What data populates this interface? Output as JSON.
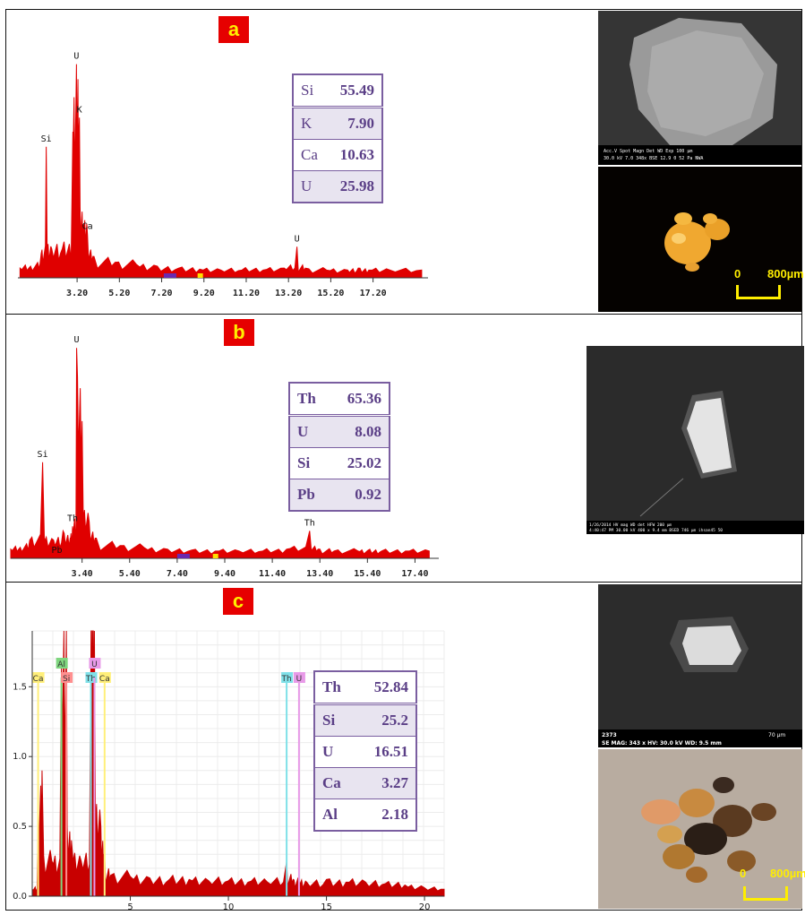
{
  "panels": [
    {
      "label": "a",
      "composition": [
        {
          "el": "Si",
          "val": "55.49"
        },
        {
          "el": "K",
          "val": "7.90"
        },
        {
          "el": "Ca",
          "val": "10.63"
        },
        {
          "el": "U",
          "val": "25.98"
        }
      ],
      "scale_zero": "0",
      "scale_len": "800µm"
    },
    {
      "label": "b",
      "composition": [
        {
          "el": "Th",
          "val": "65.36"
        },
        {
          "el": "U",
          "val": "8.08"
        },
        {
          "el": "Si",
          "val": "25.02"
        },
        {
          "el": "Pb",
          "val": "0.92"
        }
      ]
    },
    {
      "label": "c",
      "composition": [
        {
          "el": "Th",
          "val": "52.84"
        },
        {
          "el": "Si",
          "val": "25.2"
        },
        {
          "el": "U",
          "val": "16.51"
        },
        {
          "el": "Ca",
          "val": "3.27"
        },
        {
          "el": "Al",
          "val": "2.18"
        }
      ],
      "scale_zero": "0",
      "scale_len": "800µm"
    }
  ],
  "sem_a": {
    "footer": "Acc.V  Spot Magn   Det  WD  Exp      100 µm",
    "footer2": "30.0 kV 7.0  348x   BSE  12.9  0      52 Pa  NWA"
  },
  "sem_b": {
    "footer": "1/26/2014   HV    mag    WD    det   HFW        200 µm",
    "footer2": "4:40:47 PM  30.00 kV  400 x  9.4 mm  BSED  746 µm     ihsan45 50"
  },
  "sem_c": {
    "id": "2373",
    "footer": "SE  MAG: 343 x  HV: 30.0 kV  WD: 9.5 mm",
    "scale": "70 µm"
  },
  "chart_data": [
    {
      "type": "line",
      "panel": "a",
      "x": [
        0.5,
        1.0,
        1.5,
        1.74,
        2.0,
        2.5,
        3.0,
        3.17,
        3.31,
        3.5,
        3.69,
        4.0,
        5.0,
        6.0,
        7.0,
        8.0,
        9.0,
        10.0,
        11.0,
        12.0,
        13.0,
        13.6,
        14.0,
        15.0,
        16.0,
        16.5,
        17.0,
        18.0,
        19.5
      ],
      "y": [
        10,
        12,
        25,
        135,
        30,
        30,
        150,
        220,
        165,
        55,
        45,
        22,
        16,
        14,
        12,
        10,
        9,
        8,
        8,
        8,
        10,
        32,
        10,
        8,
        8,
        10,
        8,
        8,
        8
      ],
      "xticks": [
        "3.20",
        "5.20",
        "7.20",
        "9.20",
        "11.20",
        "13.20",
        "15.20",
        "17.20"
      ],
      "xlim": [
        0.4,
        19.8
      ],
      "ylim": [
        0,
        240
      ],
      "peak_labels": [
        {
          "x": 1.74,
          "text": "Si"
        },
        {
          "x": 3.17,
          "text": "U"
        },
        {
          "x": 3.31,
          "text": "K"
        },
        {
          "x": 3.69,
          "text": "Ca"
        },
        {
          "x": 13.6,
          "text": "U"
        }
      ]
    },
    {
      "type": "line",
      "panel": "b",
      "x": [
        0.4,
        0.8,
        1.2,
        1.74,
        2.2,
        2.6,
        2.9,
        3.0,
        3.17,
        3.4,
        3.7,
        4.0,
        5.0,
        6.0,
        7.0,
        8.0,
        9.0,
        10.0,
        11.0,
        12.0,
        12.97,
        13.4,
        14.0,
        15.0,
        15.5,
        16.0,
        17.0,
        18.0
      ],
      "y": [
        10,
        12,
        20,
        105,
        20,
        30,
        22,
        35,
        230,
        150,
        40,
        22,
        14,
        12,
        10,
        9,
        8,
        8,
        8,
        10,
        30,
        10,
        8,
        8,
        10,
        8,
        8,
        8
      ],
      "xticks": [
        "3.40",
        "5.40",
        "7.40",
        "9.40",
        "11.40",
        "13.40",
        "15.40",
        "17.40"
      ],
      "xlim": [
        0.4,
        18.4
      ],
      "ylim": [
        0,
        240
      ],
      "peak_labels": [
        {
          "x": 1.74,
          "text": "Si"
        },
        {
          "x": 2.34,
          "text": "Pb"
        },
        {
          "x": 3.0,
          "text": "Th"
        },
        {
          "x": 3.17,
          "text": "U"
        },
        {
          "x": 12.97,
          "text": "Th"
        }
      ]
    },
    {
      "type": "line",
      "panel": "c",
      "x": [
        0,
        0.3,
        0.5,
        1.0,
        1.49,
        1.74,
        2.0,
        2.5,
        3.0,
        3.17,
        3.5,
        3.69,
        4.0,
        5.0,
        6.0,
        7.0,
        8.0,
        9.0,
        10.0,
        11.0,
        12.0,
        12.97,
        13.3,
        13.6,
        14.0,
        15.0,
        16.0,
        17.0,
        18.0,
        19.0,
        20.0,
        21.0
      ],
      "y": [
        0.05,
        0.6,
        0.9,
        0.25,
        1.65,
        1.9,
        0.4,
        0.25,
        1.9,
        1.9,
        0.5,
        0.3,
        0.15,
        0.14,
        0.13,
        0.12,
        0.12,
        0.11,
        0.11,
        0.1,
        0.1,
        0.25,
        0.12,
        0.1,
        0.1,
        0.12,
        0.1,
        0.1,
        0.09,
        0.08,
        0.06,
        0.05
      ],
      "xticks": [
        "5",
        "10",
        "15",
        "20"
      ],
      "yticks": [
        "0.0",
        "0.5",
        "1.0",
        "1.5"
      ],
      "xlim": [
        0,
        21
      ],
      "ylim": [
        0,
        1.9
      ],
      "peak_labels": [
        {
          "x": 0.3,
          "text": "Ca",
          "color": "#ffef7a"
        },
        {
          "x": 1.49,
          "text": "Al",
          "color": "#7fd67f"
        },
        {
          "x": 1.74,
          "text": "Si",
          "color": "#ff8f8f"
        },
        {
          "x": 2.99,
          "text": "Th",
          "color": "#7fe0e8"
        },
        {
          "x": 3.17,
          "text": "U",
          "color": "#e89ae8"
        },
        {
          "x": 3.69,
          "text": "Ca",
          "color": "#ffef7a"
        },
        {
          "x": 12.97,
          "text": "Th",
          "color": "#7fe0e8"
        },
        {
          "x": 13.6,
          "text": "U",
          "color": "#e89ae8"
        }
      ]
    }
  ]
}
